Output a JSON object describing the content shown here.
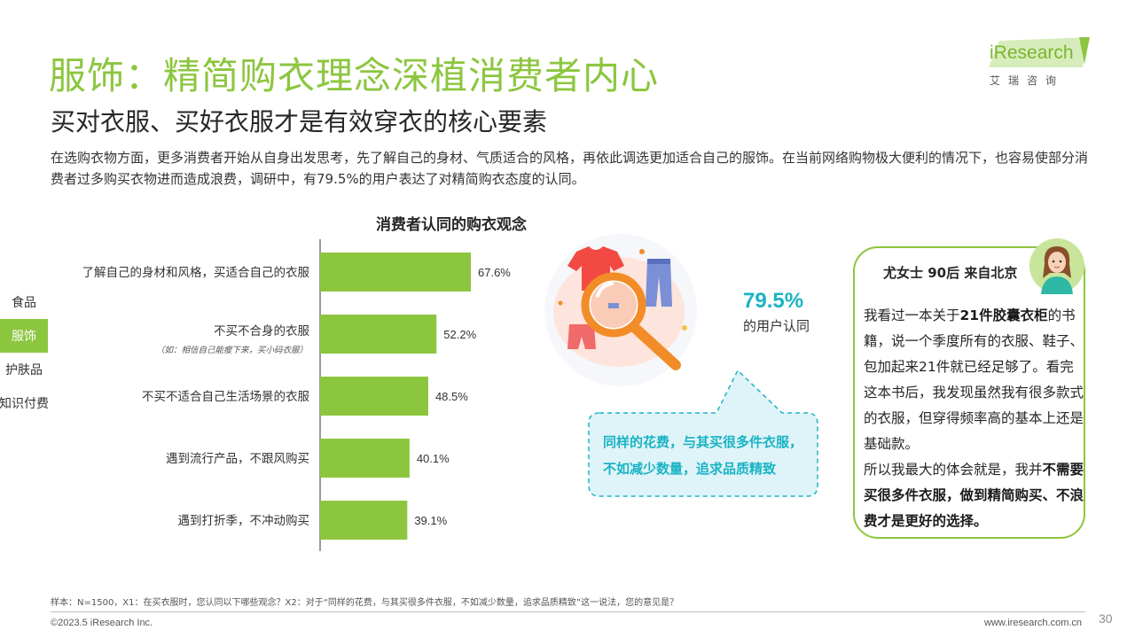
{
  "header": {
    "title": "服饰：精简购衣理念深植消费者内心",
    "subtitle": "买对衣服、买好衣服才是有效穿衣的核心要素",
    "intro": "在选购衣物方面，更多消费者开始从自身出发思考，先了解自己的身材、气质适合的风格，再依此调选更加适合自己的服饰。在当前网络购物极大便利的情况下，也容易使部分消费者过多购买衣物进而造成浪费，调研中，有79.5%的用户表达了对精简购衣态度的认同。"
  },
  "logo": {
    "brand": "iResearch",
    "cn": "艾瑞咨询"
  },
  "side_nav": {
    "items": [
      {
        "label": "食品",
        "active": false
      },
      {
        "label": "服饰",
        "active": true
      },
      {
        "label": "护肤品",
        "active": false
      },
      {
        "label": "知识付费",
        "active": false
      }
    ]
  },
  "chart_data": {
    "type": "bar",
    "orientation": "horizontal",
    "title": "消费者认同的购衣观念",
    "categories": [
      "了解自己的身材和风格，买适合自己的衣服",
      "不买不合身的衣服",
      "不买不适合自己生活场景的衣服",
      "遇到流行产品，不跟风购买",
      "遇到打折季，不冲动购买"
    ],
    "category_notes": [
      "",
      "（如：相信自己能瘦下来，买小码衣服）",
      "",
      "",
      ""
    ],
    "values": [
      67.6,
      52.2,
      48.5,
      40.1,
      39.1
    ],
    "value_labels": [
      "67.6%",
      "52.2%",
      "48.5%",
      "40.1%",
      "39.1%"
    ],
    "unit": "%",
    "xlim": [
      0,
      100
    ],
    "grid": false,
    "bar_color": "#8cc63f"
  },
  "stat": {
    "value": "79.5%",
    "label": "的用户认同"
  },
  "bubble": {
    "line1": "同样的花费，与其买很多件衣服，",
    "line2": "不如减少数量，追求品质精致"
  },
  "quote": {
    "name": "尤女士 90后 来自北京",
    "p1_a": "我看过一本关于",
    "p1_bold": "21件胶囊衣柜",
    "p1_b": "的书籍，说一个季度所有的衣服、鞋子、包加起来21件就已经足够了。看完这本书后，我发现虽然我有很多款式的衣服，但穿得频率高的基本上还是基础款。",
    "p2_a": "所以我最大的体会就是，我并",
    "p2_bold": "不需要买很多件衣服，做到精简购买、不浪费才是更好的选择。"
  },
  "footer": {
    "note": "样本：N=1500，X1：在买衣服时，您认同以下哪些观念？X2：对于“同样的花费，与其买很多件衣服，不如减少数量，追求品质精致”这一说法，您的意见是？",
    "copyright": "©2023.5 iResearch Inc.",
    "site": "www.iresearch.com.cn",
    "page": "30"
  },
  "colors": {
    "accent_green": "#8cc63f",
    "accent_cyan": "#1ab3c4",
    "bubble_fill": "#dff4f8"
  },
  "icons": [
    "tshirt-icon",
    "pants-icon",
    "shorts-icon",
    "magnifier-icon",
    "woman-avatar-icon"
  ]
}
